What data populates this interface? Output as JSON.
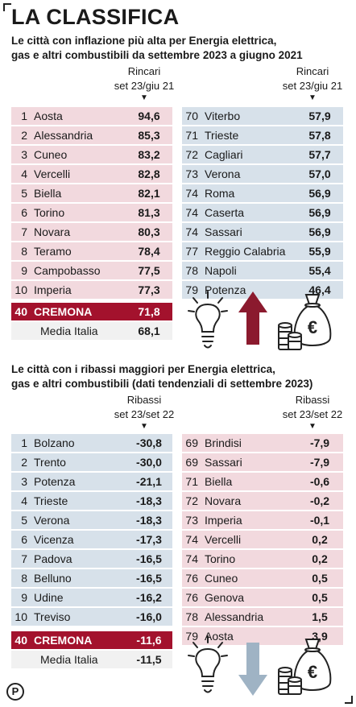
{
  "title": "LA CLASSIFICA",
  "section1": {
    "subtitle_line1": "Le città con inflazione più alta per Energia elettrica,",
    "subtitle_line2": "gas e altri combustibili  da settembre 2023  a giugno 2021",
    "col_label": "Rincari",
    "col_period": "set 23/giu 21",
    "arrow": "▼",
    "left_rows": [
      {
        "rank": "1",
        "city": "Aosta",
        "value": "94,6"
      },
      {
        "rank": "2",
        "city": "Alessandria",
        "value": "85,3"
      },
      {
        "rank": "3",
        "city": "Cuneo",
        "value": "83,2"
      },
      {
        "rank": "4",
        "city": "Vercelli",
        "value": "82,8"
      },
      {
        "rank": "5",
        "city": "Biella",
        "value": "82,1"
      },
      {
        "rank": "6",
        "city": "Torino",
        "value": "81,3"
      },
      {
        "rank": "7",
        "city": "Novara",
        "value": "80,3"
      },
      {
        "rank": "8",
        "city": "Teramo",
        "value": "78,4"
      },
      {
        "rank": "9",
        "city": "Campobasso",
        "value": "77,5"
      },
      {
        "rank": "10",
        "city": "Imperia",
        "value": "77,3"
      }
    ],
    "right_rows": [
      {
        "rank": "70",
        "city": "Viterbo",
        "value": "57,9"
      },
      {
        "rank": "71",
        "city": "Trieste",
        "value": "57,8"
      },
      {
        "rank": "72",
        "city": "Cagliari",
        "value": "57,7"
      },
      {
        "rank": "73",
        "city": "Verona",
        "value": "57,0"
      },
      {
        "rank": "74",
        "city": "Roma",
        "value": "56,9"
      },
      {
        "rank": "74",
        "city": "Caserta",
        "value": "56,9"
      },
      {
        "rank": "74",
        "city": "Sassari",
        "value": "56,9"
      },
      {
        "rank": "77",
        "city": "Reggio Calabria",
        "value": "55,9"
      },
      {
        "rank": "78",
        "city": "Napoli",
        "value": "55,4"
      },
      {
        "rank": "79",
        "city": "Potenza",
        "value": "46,4"
      }
    ],
    "cremona": {
      "rank": "40",
      "city": "CREMONA",
      "value": "71,8"
    },
    "media": {
      "city": "Media Italia",
      "value": "68,1"
    }
  },
  "section2": {
    "subtitle_line1": "Le città con i ribassi maggiori per Energia elettrica,",
    "subtitle_line2": "gas e altri combustibili (dati tendenziali di settembre 2023)",
    "col_label": "Ribassi",
    "col_period": "set 23/set 22",
    "arrow": "▼",
    "left_rows": [
      {
        "rank": "1",
        "city": "Bolzano",
        "value": "-30,8"
      },
      {
        "rank": "2",
        "city": "Trento",
        "value": "-30,0"
      },
      {
        "rank": "3",
        "city": "Potenza",
        "value": "-21,1"
      },
      {
        "rank": "4",
        "city": "Trieste",
        "value": "-18,3"
      },
      {
        "rank": "5",
        "city": "Verona",
        "value": "-18,3"
      },
      {
        "rank": "6",
        "city": "Vicenza",
        "value": "-17,3"
      },
      {
        "rank": "7",
        "city": "Padova",
        "value": "-16,5"
      },
      {
        "rank": "8",
        "city": "Belluno",
        "value": "-16,5"
      },
      {
        "rank": "9",
        "city": "Udine",
        "value": "-16,2"
      },
      {
        "rank": "10",
        "city": "Treviso",
        "value": "-16,0"
      }
    ],
    "right_rows": [
      {
        "rank": "69",
        "city": "Brindisi",
        "value": "-7,9"
      },
      {
        "rank": "69",
        "city": "Sassari",
        "value": "-7,9"
      },
      {
        "rank": "71",
        "city": "Biella",
        "value": "-0,6"
      },
      {
        "rank": "72",
        "city": "Novara",
        "value": "-0,2"
      },
      {
        "rank": "73",
        "city": "Imperia",
        "value": "-0,1"
      },
      {
        "rank": "74",
        "city": "Vercelli",
        "value": "0,2"
      },
      {
        "rank": "74",
        "city": "Torino",
        "value": "0,2"
      },
      {
        "rank": "76",
        "city": "Cuneo",
        "value": "0,5"
      },
      {
        "rank": "76",
        "city": "Genova",
        "value": "0,5"
      },
      {
        "rank": "78",
        "city": "Alessandria",
        "value": "1,5"
      },
      {
        "rank": "79",
        "city": "Aosta",
        "value": "3,9"
      }
    ],
    "cremona": {
      "rank": "40",
      "city": "CREMONA",
      "value": "-11,6"
    },
    "media": {
      "city": "Media Italia",
      "value": "-11,5"
    }
  },
  "logo_letter": "P",
  "euro_symbol": "€",
  "colors": {
    "pink": "#f2d9de",
    "blue": "#d7e1ea",
    "crimson": "#a3122d",
    "up_arrow": "#8b1a2e",
    "down_arrow": "#9fb3c4"
  },
  "icons": [
    "lightbulb-icon",
    "up-arrow-icon",
    "money-bag-icon",
    "coins-icon",
    "down-arrow-icon"
  ]
}
